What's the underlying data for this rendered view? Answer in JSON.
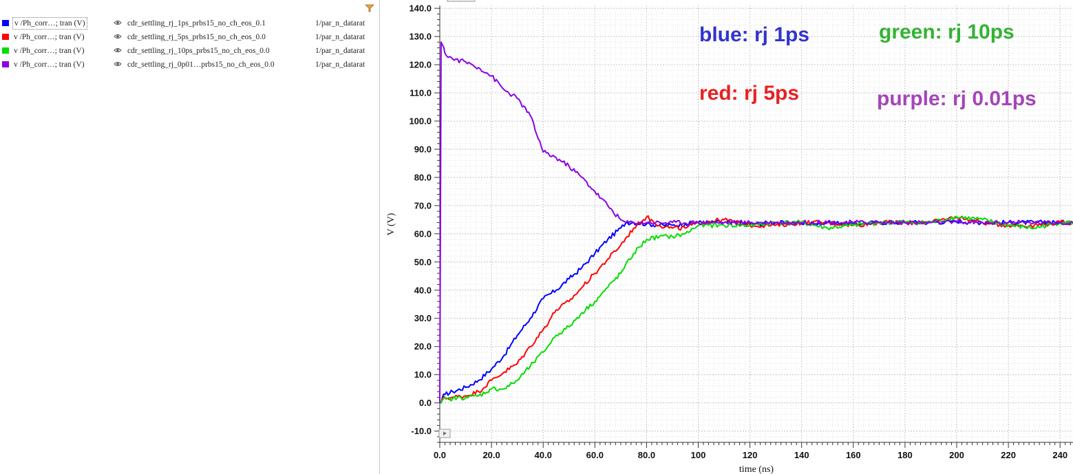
{
  "legend": {
    "items": [
      {
        "signal": "v /Ph_corr…; tran (V)",
        "dataset": "cdr_settling_rj_1ps_prbs15_no_ch_eos_0.1",
        "param": "1/par_n_datarat",
        "color": "#0000ff"
      },
      {
        "signal": "v /Ph_corr…; tran (V)",
        "dataset": "cdr_settling_rj_5ps_prbs15_no_ch_eos_0.0",
        "param": "1/par_n_datarat",
        "color": "#ff0000"
      },
      {
        "signal": "v /Ph_corr…; tran (V)",
        "dataset": "cdr_settling_rj_10ps_prbs15_no_ch_eos_0.0",
        "param": "1/par_n_datarat",
        "color": "#00dd00"
      },
      {
        "signal": "v /Ph_corr…; tran (V)",
        "dataset": "cdr_settling_rj_0p01…prbs15_no_ch_eos_0.0",
        "param": "1/par_n_datarat",
        "color": "#8a00e6"
      }
    ]
  },
  "annotations": {
    "blue": "blue: rj 1ps",
    "green": "green: rj 10ps",
    "red": "red: rj 5ps",
    "purple": "purple: rj 0.01ps",
    "colors": {
      "blue": "#3333cc",
      "green": "#33b333",
      "red": "#e62222",
      "purple": "#a346b8"
    }
  },
  "chart_data": {
    "type": "line",
    "xlabel": "time (ns)",
    "ylabel": "V (V)",
    "xlim": [
      0,
      245
    ],
    "ylim": [
      -14,
      141
    ],
    "x_ticks": [
      0,
      20,
      40,
      60,
      80,
      100,
      120,
      140,
      160,
      180,
      200,
      220,
      240
    ],
    "x_tick_labels": [
      "0.0",
      "20.0",
      "40.0",
      "60.0",
      "80.0",
      "100",
      "120",
      "140",
      "160",
      "180",
      "200",
      "220",
      "240"
    ],
    "y_ticks": [
      -10,
      0,
      10,
      20,
      30,
      40,
      50,
      60,
      70,
      80,
      90,
      100,
      110,
      120,
      130,
      140
    ],
    "y_tick_labels": [
      "-10.0",
      "0.0",
      "10.0",
      "20.0",
      "30.0",
      "40.0",
      "50.0",
      "60.0",
      "70.0",
      "80.0",
      "90.0",
      "100.0",
      "110.0",
      "120.0",
      "130.0",
      "140.0"
    ],
    "grid": true,
    "series": [
      {
        "name": "cdr_settling_rj_1ps_prbs15_no_ch_eos_0.1",
        "color": "#0000ff",
        "x": [
          0,
          0.5,
          1,
          2,
          5,
          10,
          15,
          20,
          25,
          30,
          35,
          40,
          45,
          50,
          55,
          60,
          65,
          70,
          72,
          75,
          80,
          85,
          90,
          95,
          100,
          110,
          120,
          130,
          140,
          150,
          160,
          170,
          180,
          190,
          200,
          210,
          220,
          230,
          240,
          245
        ],
        "y": [
          0,
          0,
          2,
          3,
          4,
          5.5,
          8,
          12,
          17,
          24,
          30,
          37,
          40,
          44,
          48,
          53,
          58,
          62,
          64,
          64,
          63.5,
          63,
          63,
          63.5,
          64,
          64,
          63.5,
          64,
          63.5,
          64,
          63.5,
          64,
          64,
          64,
          64.5,
          64,
          64,
          64,
          64,
          64
        ]
      },
      {
        "name": "cdr_settling_rj_5ps_prbs15_no_ch_eos_0.0",
        "color": "#ff0000",
        "x": [
          0,
          0.5,
          1,
          5,
          10,
          15,
          20,
          25,
          30,
          35,
          40,
          45,
          50,
          55,
          60,
          65,
          70,
          75,
          80,
          85,
          90,
          95,
          100,
          110,
          120,
          130,
          140,
          150,
          160,
          170,
          180,
          190,
          200,
          210,
          220,
          230,
          240,
          245
        ],
        "y": [
          0,
          0,
          1.5,
          2,
          2.5,
          4,
          8,
          11,
          14,
          20,
          26,
          33,
          36,
          41,
          46,
          51,
          56,
          62,
          66,
          63,
          62,
          62,
          64,
          65,
          63,
          63,
          64,
          64,
          63,
          64,
          64,
          64,
          66,
          64,
          63,
          63,
          64,
          64
        ]
      },
      {
        "name": "cdr_settling_rj_10ps_prbs15_no_ch_eos_0.0",
        "color": "#00dd00",
        "x": [
          0,
          0.5,
          1,
          5,
          10,
          15,
          20,
          25,
          30,
          35,
          40,
          45,
          50,
          55,
          60,
          65,
          70,
          75,
          80,
          85,
          90,
          95,
          100,
          110,
          120,
          130,
          140,
          150,
          160,
          170,
          180,
          190,
          200,
          210,
          220,
          230,
          240,
          245
        ],
        "y": [
          0,
          0,
          1,
          1.5,
          2,
          2.5,
          5,
          5,
          8,
          13,
          18,
          24,
          27,
          32,
          36,
          41,
          46,
          53,
          58,
          59,
          59,
          60,
          63,
          63,
          63,
          64,
          64,
          62,
          63,
          64,
          64,
          64,
          66,
          65,
          63,
          62,
          64,
          64
        ]
      },
      {
        "name": "cdr_settling_rj_0p01…prbs15_no_ch_eos_0.0",
        "color": "#8a00e6",
        "x": [
          0,
          0.5,
          1,
          2,
          5,
          10,
          15,
          20,
          25,
          30,
          35,
          40,
          45,
          50,
          55,
          60,
          65,
          70,
          72,
          75,
          80,
          90,
          100,
          110,
          120,
          130,
          140,
          150,
          160,
          170,
          180,
          190,
          200,
          210,
          220,
          230,
          240,
          245
        ],
        "y": [
          0,
          128,
          127,
          124,
          122,
          121,
          119,
          116,
          111,
          108,
          102,
          89,
          87,
          84,
          80,
          75,
          70,
          65,
          64,
          64,
          64,
          64,
          64,
          64,
          64,
          64,
          64,
          64,
          64,
          64,
          64,
          64,
          64,
          64,
          64,
          64,
          64,
          64
        ]
      }
    ]
  }
}
